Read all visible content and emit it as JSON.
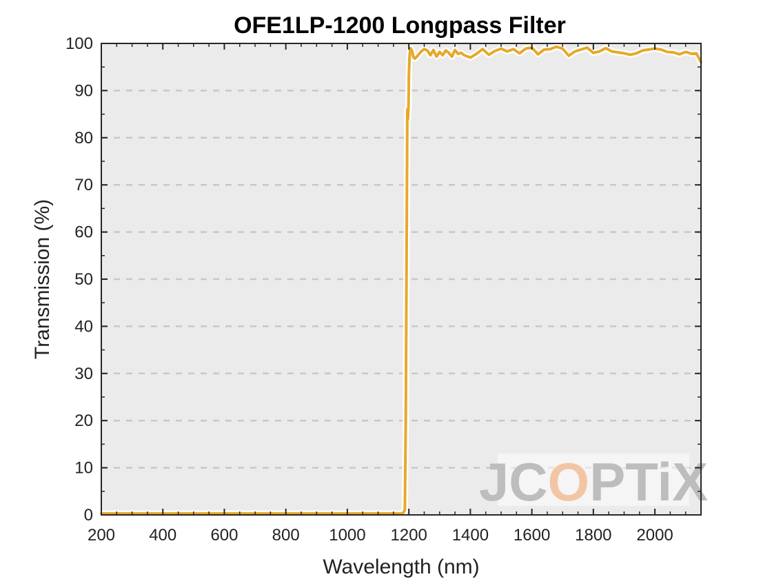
{
  "chart_data": {
    "type": "line",
    "title": "OFE1LP-1200 Longpass Filter",
    "xlabel": "Wavelength (nm)",
    "ylabel": "Transmission (%)",
    "xlim": [
      200,
      2150
    ],
    "ylim": [
      0,
      100
    ],
    "xticks": [
      200,
      400,
      600,
      800,
      1000,
      1200,
      1400,
      1600,
      1800,
      2000
    ],
    "yticks": [
      0,
      10,
      20,
      30,
      40,
      50,
      60,
      70,
      80,
      90,
      100
    ],
    "grid": "horizontal dashed",
    "legend": "none",
    "series": [
      {
        "color": "#E6A92A",
        "x": [
          200,
          400,
          600,
          800,
          1000,
          1180,
          1187,
          1190,
          1193,
          1195,
          1197,
          1199,
          1200,
          1202,
          1205,
          1210,
          1215,
          1220,
          1230,
          1240,
          1250,
          1260,
          1270,
          1280,
          1290,
          1300,
          1310,
          1320,
          1330,
          1340,
          1350,
          1360,
          1370,
          1380,
          1400,
          1420,
          1440,
          1460,
          1480,
          1500,
          1520,
          1540,
          1560,
          1580,
          1600,
          1620,
          1640,
          1660,
          1680,
          1700,
          1720,
          1740,
          1760,
          1780,
          1800,
          1820,
          1840,
          1860,
          1880,
          1900,
          1920,
          1940,
          1960,
          1980,
          2000,
          2020,
          2040,
          2060,
          2080,
          2100,
          2120,
          2135,
          2150
        ],
        "y": [
          0.3,
          0.3,
          0.3,
          0.3,
          0.3,
          0.3,
          1,
          20,
          60,
          86,
          84,
          87,
          93,
          97,
          99,
          98.5,
          97,
          96.8,
          97.5,
          98.3,
          98.8,
          98.5,
          97.5,
          98.6,
          97.2,
          98.2,
          97.5,
          98.5,
          98,
          97.2,
          98.6,
          97.8,
          98,
          97.5,
          97,
          97.8,
          98.8,
          97.6,
          98.4,
          98.9,
          98.3,
          98.8,
          97.9,
          98.9,
          99.1,
          97.7,
          98.7,
          98.8,
          99.3,
          98.9,
          97.4,
          98.3,
          98.7,
          99.1,
          98,
          98.3,
          99,
          98.3,
          98.1,
          97.9,
          97.6,
          97.9,
          98.5,
          98.7,
          98.9,
          98.7,
          98.2,
          98.1,
          97.7,
          98.2,
          97.8,
          97.9,
          96
        ]
      }
    ],
    "watermark": {
      "text_a": "JC",
      "text_b": "O",
      "text_c": "PTiX",
      "color_main": "#BDBDBD",
      "color_accent": "#F2C6A5"
    }
  }
}
